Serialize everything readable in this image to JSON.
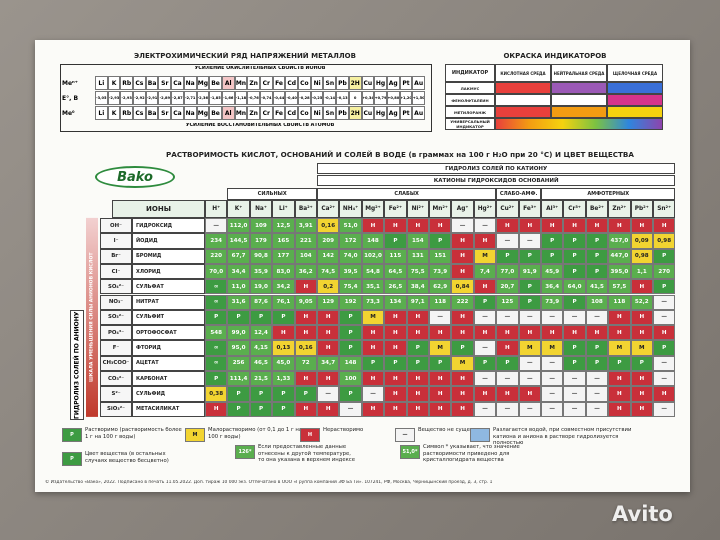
{
  "electrochemical_series": {
    "title": "ЭЛЕКТРОХИМИЧЕСКИЙ РЯД НАПРЯЖЕНИЙ МЕТАЛЛОВ",
    "top_note": "УСИЛЕНИЕ ОКИСЛИТЕЛЬНЫХ СВОЙСТВ ИОНОВ",
    "bottom_note": "УСИЛЕНИЕ ВОССТАНОВИТЕЛЬНЫХ СВОЙСТВ АТОМОВ",
    "row_labels": [
      "Meⁿ⁺",
      "E°, В",
      "Me⁰"
    ],
    "metals": [
      "Li",
      "K",
      "Rb",
      "Cs",
      "Ba",
      "Sr",
      "Ca",
      "Na",
      "Mg",
      "Be",
      "Al",
      "Mn",
      "Zn",
      "Cr",
      "Fe",
      "Cd",
      "Co",
      "Ni",
      "Sn",
      "Pb",
      "2H",
      "Cu",
      "Hg",
      "Ag",
      "Pt",
      "Au"
    ],
    "potentials": [
      "-3,05",
      "-2,93",
      "-2,93",
      "-2,92",
      "-2,91",
      "-2,89",
      "-2,87",
      "-2,71",
      "-2,36",
      "-1,85",
      "-1,66",
      "-1,18",
      "-0,76",
      "-0,74",
      "-0,44",
      "-0,40",
      "-0,28",
      "-0,25",
      "-0,14",
      "-0,13",
      "0",
      "+0,34",
      "+0,79",
      "+0,80",
      "+1,20",
      "+1,50"
    ]
  },
  "indicators": {
    "title": "ОКРАСКА ИНДИКАТОРОВ",
    "header": "ИНДИКАТОР",
    "media": [
      "КИСЛОТНАЯ СРЕДА",
      "НЕЙТРАЛЬНАЯ СРЕДА",
      "ЩЕЛОЧНАЯ СРЕДА"
    ],
    "rows": [
      "ЛАКМУС",
      "ФЕНОЛФТАЛЕИН",
      "МЕТИЛОРАНЖ",
      "УНИВЕРСАЛЬНЫЙ ИНДИКАТОР"
    ]
  },
  "solubility": {
    "title": "РАСТВОРИМОСТЬ КИСЛОТ, ОСНОВАНИЙ И СОЛЕЙ В ВОДЕ (в граммах на 100 г H₂O при 20 °C) И ЦВЕТ ВЕЩЕСТВА",
    "logo": "Bako",
    "hydrolysis_cation": "ГИДРОЛИЗ СОЛЕЙ ПО КАТИОНУ",
    "cation_header": "КАТИОНЫ ГИДРОКСИДОВ ОСНОВАНИЙ",
    "groups": [
      "СИЛЬНЫХ",
      "СЛАБЫХ",
      "СЛАБО-АМФ.",
      "АМФОТЕРНЫХ"
    ],
    "ions_header": "ИОНЫ",
    "left_labels": [
      "ГИДРОЛИЗ СОЛЕЙ ПО АНИОНУ",
      "ШКАЛА УМЕНЬШЕНИЯ СИЛЫ АНИОНОВ КИСЛОТ"
    ],
    "cations": [
      "H⁺",
      "K⁺",
      "Na⁺",
      "Li⁺",
      "Ba²⁺",
      "Ca²⁺",
      "NH₄⁺",
      "Mg²⁺",
      "Fe²⁺",
      "Ni²⁺",
      "Mn²⁺",
      "Ag⁺",
      "Hg²⁺",
      "Cu²⁺",
      "Fe³⁺",
      "Al³⁺",
      "Cr³⁺",
      "Be²⁺",
      "Zn²⁺",
      "Pb²⁺",
      "Sn²⁺"
    ],
    "anions": [
      {
        "formula": "OH⁻",
        "name": "ГИДРОКСИД",
        "cells": [
          "—",
          "112,0",
          "109",
          "12,5",
          "3,91",
          "0,16",
          "51,0",
          "Н",
          "Н",
          "Н",
          "Н",
          "—",
          "—",
          "Н",
          "Н",
          "Н",
          "Н",
          "Н",
          "Н",
          "Н",
          "Н"
        ]
      },
      {
        "formula": "I⁻",
        "name": "ЙОДИД",
        "cells": [
          "234",
          "144,5",
          "179",
          "165",
          "221",
          "209",
          "172",
          "148",
          "Р",
          "154",
          "Р",
          "Н",
          "Н",
          "—",
          "—",
          "Р",
          "Р",
          "Р",
          "437,0",
          "0,09",
          "0,98"
        ]
      },
      {
        "formula": "Br⁻",
        "name": "БРОМИД",
        "cells": [
          "220",
          "67,7",
          "90,8",
          "177",
          "104",
          "142",
          "74,0",
          "102,0",
          "115",
          "131",
          "151",
          "Н",
          "М",
          "Р",
          "Р",
          "Р",
          "Р",
          "Р",
          "447,0",
          "0,98",
          "Р"
        ]
      },
      {
        "formula": "Cl⁻",
        "name": "ХЛОРИД",
        "cells": [
          "70,0",
          "34,4",
          "35,9",
          "83,0",
          "36,2",
          "74,5",
          "39,5",
          "54,8",
          "64,5",
          "75,5",
          "73,9",
          "Н",
          "7,4",
          "77,0",
          "91,9",
          "45,9",
          "Р",
          "Р",
          "395,0",
          "1,1",
          "270"
        ]
      },
      {
        "formula": "SO₄²⁻",
        "name": "СУЛЬФАТ",
        "cells": [
          "∞",
          "11,0",
          "19,0",
          "34,2",
          "Н",
          "0,2",
          "75,4",
          "35,1",
          "26,5",
          "38,4",
          "62,9",
          "0,84",
          "Н",
          "20,7",
          "Р",
          "36,4",
          "64,0",
          "41,5",
          "57,5",
          "Н",
          "Р"
        ]
      },
      {
        "formula": "NO₃⁻",
        "name": "НИТРАТ",
        "cells": [
          "∞",
          "31,6",
          "87,6",
          "76,1",
          "9,05",
          "129",
          "192",
          "73,3",
          "134",
          "97,1",
          "118",
          "222",
          "Р",
          "125",
          "Р",
          "73,9",
          "Р",
          "108",
          "118",
          "52,2",
          "—"
        ]
      },
      {
        "formula": "SO₃²⁻",
        "name": "СУЛЬФИТ",
        "cells": [
          "Р",
          "Р",
          "Р",
          "Р",
          "Н",
          "Н",
          "Р",
          "М",
          "Н",
          "Н",
          "—",
          "Н",
          "—",
          "—",
          "—",
          "—",
          "—",
          "—",
          "Н",
          "Н",
          "—"
        ]
      },
      {
        "formula": "PO₄³⁻",
        "name": "ОРТОФОСФАТ",
        "cells": [
          "548",
          "99,0",
          "12,4",
          "Н",
          "Н",
          "Н",
          "Р",
          "Н",
          "Н",
          "Н",
          "Н",
          "Н",
          "Н",
          "Н",
          "Н",
          "Н",
          "Н",
          "Н",
          "Н",
          "Н",
          "Н"
        ]
      },
      {
        "formula": "F⁻",
        "name": "ФТОРИД",
        "cells": [
          "∞",
          "95,0",
          "4,15",
          "0,13",
          "0,16",
          "Н",
          "Р",
          "Н",
          "Н",
          "Р",
          "М",
          "Р",
          "—",
          "Н",
          "М",
          "М",
          "Р",
          "Р",
          "М",
          "М",
          "Р"
        ]
      },
      {
        "formula": "CH₃COO⁻",
        "name": "АЦЕТАТ",
        "cells": [
          "∞",
          "256",
          "46,5",
          "45,0",
          "72",
          "34,7",
          "148",
          "Р",
          "Р",
          "Р",
          "Р",
          "М",
          "Р",
          "Р",
          "—",
          "—",
          "Р",
          "Р",
          "Р",
          "Р",
          "—"
        ]
      },
      {
        "formula": "CO₃²⁻",
        "name": "КАРБОНАТ",
        "cells": [
          "Р",
          "111,4",
          "21,5",
          "1,33",
          "Н",
          "Н",
          "100",
          "Н",
          "Н",
          "Н",
          "Н",
          "Н",
          "—",
          "—",
          "—",
          "—",
          "—",
          "—",
          "Н",
          "Н",
          "—"
        ]
      },
      {
        "formula": "S²⁻",
        "name": "СУЛЬФИД",
        "cells": [
          "0,38",
          "Р",
          "Р",
          "Р",
          "Р",
          "—",
          "Р",
          "—",
          "Н",
          "Н",
          "Н",
          "Н",
          "Н",
          "Н",
          "Н",
          "—",
          "—",
          "—",
          "Н",
          "Н",
          "Н"
        ]
      },
      {
        "formula": "SiO₃²⁻",
        "name": "МЕТАСИЛИКАТ",
        "cells": [
          "Н",
          "Р",
          "Р",
          "Р",
          "Н",
          "Н",
          "—",
          "Н",
          "Н",
          "Н",
          "Н",
          "Н",
          "—",
          "—",
          "—",
          "—",
          "—",
          "—",
          "Н",
          "Н",
          "—"
        ]
      }
    ]
  },
  "legend": [
    {
      "symbol": "Р",
      "text": "Растворимо (растворимость более 1 г на 100 г воды)"
    },
    {
      "symbol": "М",
      "text": "Малорастворимо (от 0,1 до 1 г на 100 г воды)"
    },
    {
      "symbol": "Н",
      "text": "Нерастворимо"
    },
    {
      "symbol": "—",
      "text": "Вещество не существует"
    },
    {
      "symbol": "",
      "text": "Разлагается водой, при совместном присутствии катиона и аниона в растворе гидролизуется полностью"
    },
    {
      "symbol": "Р",
      "text": "Цвет вещества (в остальных случаях вещество бесцветно)"
    },
    {
      "symbol": "126*",
      "text": "Если предоставленные данные отнесены к другой температуре, то она указана в верхнем индексе"
    },
    {
      "symbol": "51,0*",
      "text": "Символ * указывает, что значение растворимости приведено для кристаллогидрата вещества"
    }
  ],
  "footer": "© Издательство «Вако», 2022. Подписано в печать 11.05.2022. Доп. тираж 10 000 экз. Отпечатано в ООО «Группа компаний 3Ф Ба Ти». 107241, РФ, Москва, Черницынский проезд, д. 3, стр. 1",
  "watermark": "Avito"
}
